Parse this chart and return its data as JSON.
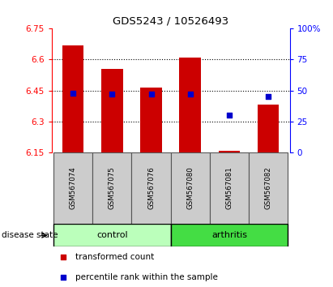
{
  "title": "GDS5243 / 10526493",
  "samples": [
    "GSM567074",
    "GSM567075",
    "GSM567076",
    "GSM567080",
    "GSM567081",
    "GSM567082"
  ],
  "bar_values": [
    6.67,
    6.555,
    6.465,
    6.61,
    6.158,
    6.38
  ],
  "bar_bottom": 6.15,
  "percentile_values": [
    48,
    47,
    47,
    47,
    30,
    45
  ],
  "ylim_left": [
    6.15,
    6.75
  ],
  "ylim_right": [
    0,
    100
  ],
  "yticks_left": [
    6.15,
    6.3,
    6.45,
    6.6,
    6.75
  ],
  "ytick_labels_left": [
    "6.15",
    "6.3",
    "6.45",
    "6.6",
    "6.75"
  ],
  "yticks_right": [
    0,
    25,
    50,
    75,
    100
  ],
  "ytick_labels_right": [
    "0",
    "25",
    "50",
    "75",
    "100%"
  ],
  "bar_color": "#cc0000",
  "percentile_color": "#0000cc",
  "control_color": "#bbffbb",
  "arthritis_color": "#44dd44",
  "sample_bg_color": "#cccccc",
  "legend_items": [
    {
      "label": "transformed count",
      "color": "#cc0000"
    },
    {
      "label": "percentile rank within the sample",
      "color": "#0000cc"
    }
  ],
  "disease_state_label": "disease state",
  "bar_width": 0.55,
  "grid_ticks": [
    6.3,
    6.45,
    6.6
  ]
}
